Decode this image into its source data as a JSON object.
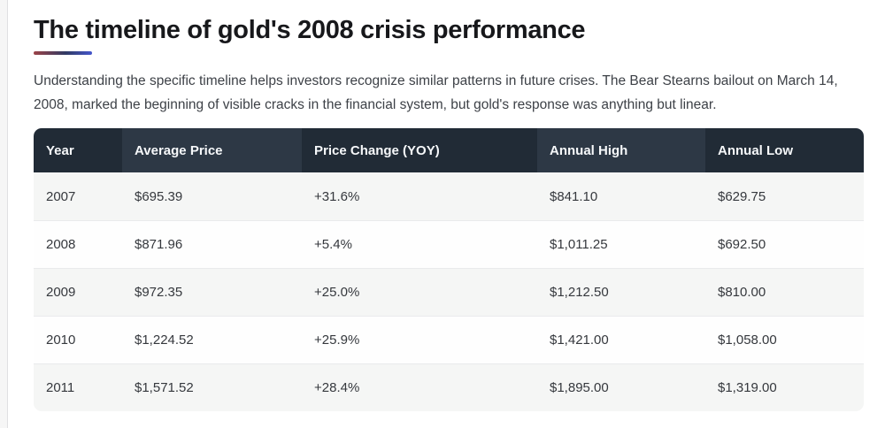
{
  "page": {
    "title": "The timeline of gold's 2008 crisis performance",
    "intro": "Understanding the specific timeline helps investors recognize similar patterns in future crises. The Bear Stearns bailout on March 14, 2008, marked the beginning of visible cracks in the financial system, but gold's response was anything but linear."
  },
  "colors": {
    "title_text": "#17181b",
    "body_text": "#3d4147",
    "accent_underline_left": "#9c4347",
    "accent_underline_mid": "#303a64",
    "accent_underline_right": "#4556cc",
    "header_bg_dark": "#212b36",
    "header_bg_light": "#2d3845",
    "header_text": "#f6f8fa",
    "row_stripe_bg": "#f5f6f5",
    "row_white_bg": "#fefefe",
    "row_divider": "#e9eaec",
    "cell_text": "#35383d"
  },
  "table": {
    "columns": [
      "Year",
      "Average Price",
      "Price Change (YOY)",
      "Annual High",
      "Annual Low"
    ],
    "rows": [
      [
        "2007",
        "$695.39",
        "+31.6%",
        "$841.10",
        "$629.75"
      ],
      [
        "2008",
        "$871.96",
        "+5.4%",
        "$1,011.25",
        "$692.50"
      ],
      [
        "2009",
        "$972.35",
        "+25.0%",
        "$1,212.50",
        "$810.00"
      ],
      [
        "2010",
        "$1,224.52",
        "+25.9%",
        "$1,421.00",
        "$1,058.00"
      ],
      [
        "2011",
        "$1,571.52",
        "+28.4%",
        "$1,895.00",
        "$1,319.00"
      ]
    ]
  }
}
